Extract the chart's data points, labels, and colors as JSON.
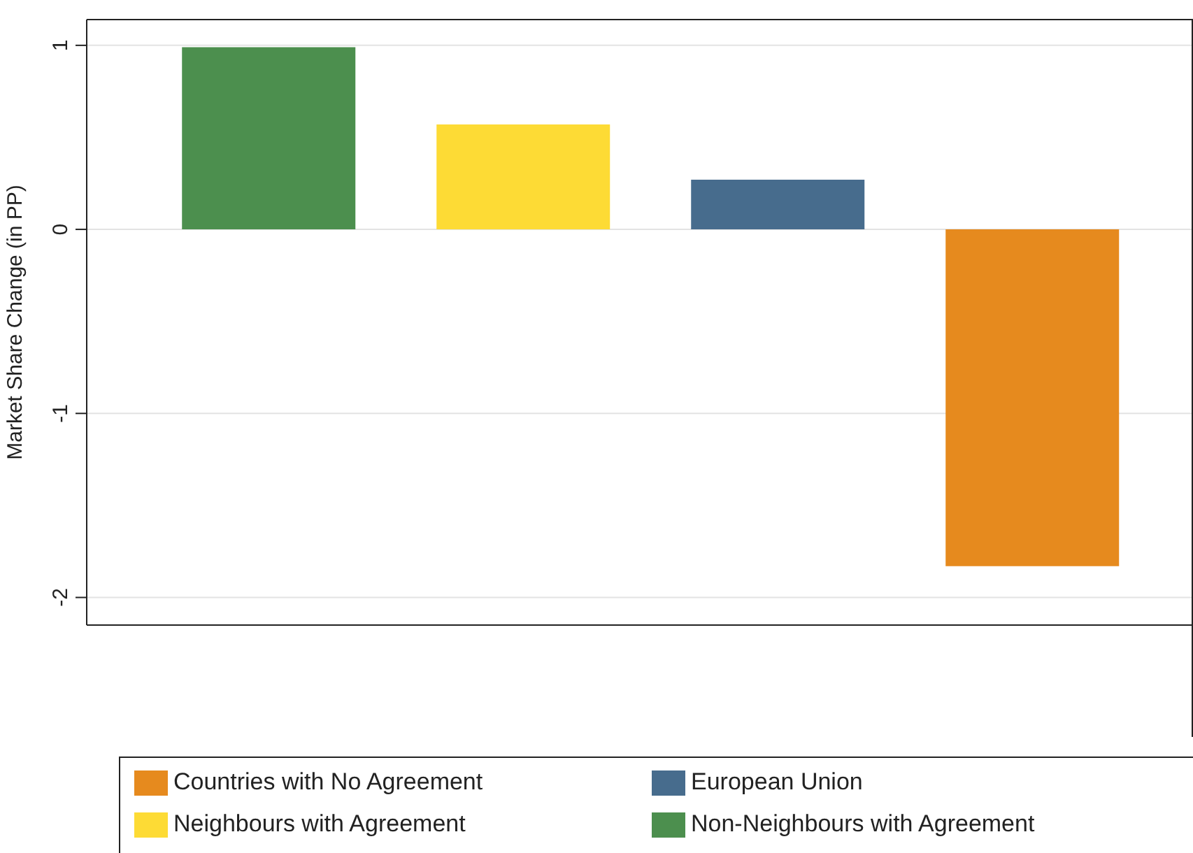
{
  "chart_data": {
    "type": "bar",
    "ylabel": "Market Share Change (in PP)",
    "categories": [
      null,
      null,
      null,
      null
    ],
    "stacked": true,
    "series": [
      {
        "name": "Non-Neighbours with Agreement",
        "color": "#4c8f4e",
        "values": [
          0.99,
          null,
          null,
          null
        ]
      },
      {
        "name": "Neighbours with Agreement",
        "color": "#fddb35",
        "values": [
          null,
          0.57,
          null,
          null
        ]
      },
      {
        "name": "European Union",
        "color": "#476c8d",
        "values": [
          null,
          null,
          0.27,
          null
        ]
      },
      {
        "name": "Countries with No Agreement",
        "color": "#e68a1e",
        "values": [
          null,
          null,
          null,
          -1.83
        ]
      }
    ],
    "ylim": [
      -2.15,
      1.14
    ],
    "yticks": [
      -2,
      -1,
      0,
      1
    ],
    "grid": "y",
    "legend": "bottom",
    "tick_labels": "y"
  }
}
